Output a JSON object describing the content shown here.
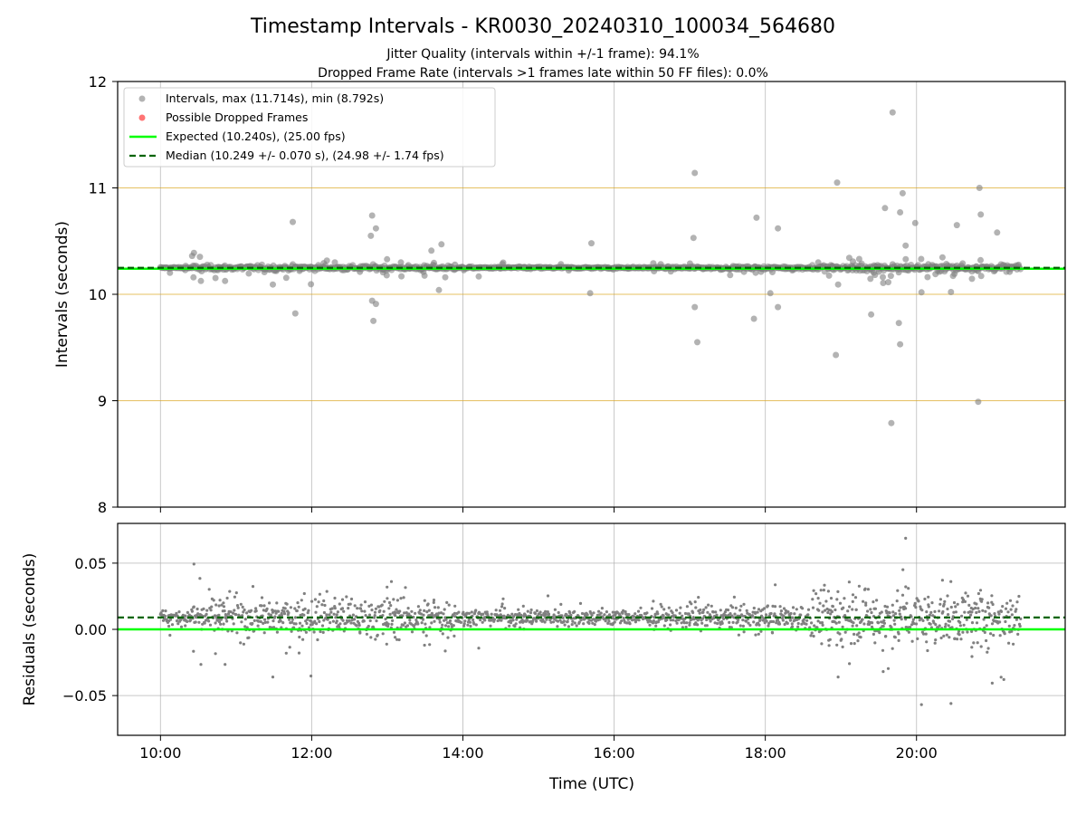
{
  "chart_data": [
    {
      "type": "scatter",
      "title": "Timestamp Intervals - KR0030_20240310_100034_564680",
      "subtitle_lines": [
        "Jitter Quality (intervals within +/-1 frame): 94.1%",
        "Dropped Frame Rate (intervals >1 frames late within 50 FF files): 0.0%"
      ],
      "xlabel": "",
      "ylabel": "Intervals (seconds)",
      "xlim": [
        "09:26",
        "21:58"
      ],
      "ylim": [
        8,
        12
      ],
      "y_ticks": [
        "8",
        "9",
        "10",
        "11",
        "12"
      ],
      "x_ticks": [
        "10:00",
        "12:00",
        "14:00",
        "16:00",
        "18:00",
        "20:00"
      ],
      "grid": true,
      "horizontal_reference_lines": [
        9,
        10,
        11
      ],
      "legend_position": "upper-left",
      "legend": [
        "Intervals, max (11.714s), min (8.792s)",
        "Possible Dropped Frames",
        "Expected (10.240s), (25.00 fps)",
        "Median (10.249 +/- 0.070 s), (24.98 +/- 1.74 fps)"
      ],
      "expected_interval": 10.24,
      "median_interval": 10.249,
      "series": [
        {
          "name": "Intervals, max (11.714s), min (8.792s)",
          "x_range": [
            "10:00",
            "21:23"
          ],
          "outliers": [
            {
              "x": "11:45",
              "y": 10.68
            },
            {
              "x": "11:47",
              "y": 9.82
            },
            {
              "x": "12:48",
              "y": 10.74
            },
            {
              "x": "12:47",
              "y": 10.55
            },
            {
              "x": "12:51",
              "y": 10.62
            },
            {
              "x": "12:48",
              "y": 9.94
            },
            {
              "x": "12:51",
              "y": 9.91
            },
            {
              "x": "12:49",
              "y": 9.75
            },
            {
              "x": "13:35",
              "y": 10.41
            },
            {
              "x": "13:43",
              "y": 10.47
            },
            {
              "x": "13:41",
              "y": 10.04
            },
            {
              "x": "15:42",
              "y": 10.48
            },
            {
              "x": "15:41",
              "y": 10.01
            },
            {
              "x": "17:04",
              "y": 11.14
            },
            {
              "x": "17:03",
              "y": 10.53
            },
            {
              "x": "17:04",
              "y": 9.88
            },
            {
              "x": "17:06",
              "y": 9.55
            },
            {
              "x": "17:53",
              "y": 10.72
            },
            {
              "x": "17:51",
              "y": 9.77
            },
            {
              "x": "18:10",
              "y": 10.62
            },
            {
              "x": "18:04",
              "y": 10.01
            },
            {
              "x": "18:10",
              "y": 9.88
            },
            {
              "x": "18:57",
              "y": 11.05
            },
            {
              "x": "18:56",
              "y": 9.43
            },
            {
              "x": "19:24",
              "y": 9.81
            },
            {
              "x": "19:41",
              "y": 11.71
            },
            {
              "x": "19:49",
              "y": 10.95
            },
            {
              "x": "19:47",
              "y": 10.77
            },
            {
              "x": "19:46",
              "y": 9.73
            },
            {
              "x": "19:47",
              "y": 9.53
            },
            {
              "x": "19:40",
              "y": 8.79
            },
            {
              "x": "20:50",
              "y": 11.0
            },
            {
              "x": "20:51",
              "y": 10.75
            },
            {
              "x": "20:49",
              "y": 8.99
            },
            {
              "x": "20:32",
              "y": 10.65
            },
            {
              "x": "19:59",
              "y": 10.67
            },
            {
              "x": "19:35",
              "y": 10.81
            },
            {
              "x": "21:04",
              "y": 10.58
            }
          ]
        },
        {
          "name": "Possible Dropped Frames",
          "points": []
        }
      ]
    },
    {
      "type": "scatter",
      "xlabel": "Time (UTC)",
      "ylabel": "Residuals (seconds)",
      "ylim": [
        -0.08,
        0.08
      ],
      "y_ticks": [
        "−0.05",
        "0.00",
        "0.05"
      ],
      "x_ticks": [
        "10:00",
        "12:00",
        "14:00",
        "16:00",
        "18:00",
        "20:00"
      ],
      "grid": true,
      "expected_residual": 0.0,
      "median_residual": 0.009
    }
  ],
  "colors": {
    "points": "#808080",
    "dropped": "#ff5c5c",
    "expected": "#00ff00",
    "median": "#006400",
    "reference": "#daa520",
    "grid": "#b0b0b0"
  }
}
